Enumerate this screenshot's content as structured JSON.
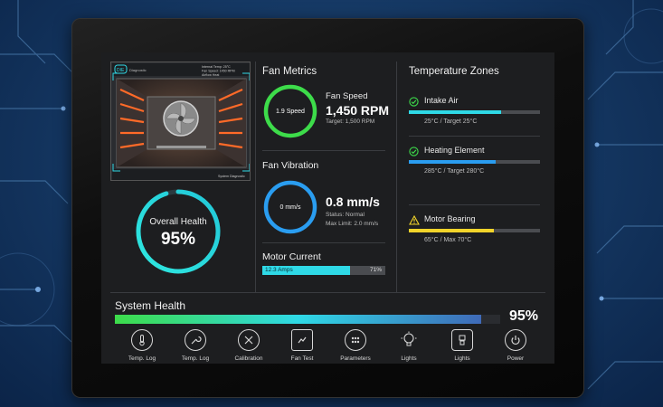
{
  "colors": {
    "accent_cyan": "#2fd9e6",
    "accent_green": "#3ddc4a",
    "accent_blue": "#2a9df0",
    "warning_yellow": "#f2d42a",
    "screen_bg": "#1d1e20"
  },
  "camera": {
    "logo": "DIE",
    "subtitle": "Diagnostic",
    "readout_line1": "Internal Temp: 25°C",
    "readout_line2": "Fan Speed: 1450 RPM",
    "readout_line3": "Airflow     Heat",
    "footer": "System Diagnostic"
  },
  "overall_health": {
    "label": "Overall Health",
    "value": "95%",
    "fraction": 0.95
  },
  "fan_metrics": {
    "title": "Fan Metrics",
    "ring_label": "1.9 Speed",
    "label": "Fan Speed",
    "value": "1,450 RPM",
    "target": "Target: 1,500 RPM"
  },
  "fan_vibration": {
    "title": "Fan Vibration",
    "ring_label": "0 mm/s",
    "value": "0.8 mm/s",
    "status": "Status: Normal",
    "max_limit": "Max Limit: 2.0 mm/s"
  },
  "motor_current": {
    "title": "Motor Current",
    "bar_label": "12.3 Amps",
    "percent_label": "71%",
    "fraction": 0.71
  },
  "temperature_zones": {
    "title": "Temperature Zones",
    "zones": [
      {
        "name": "Intake Air",
        "detail": "25°C / Target 25°C",
        "status_icon": "check-circle-icon",
        "color": "#2fd9e6",
        "fraction": 0.7
      },
      {
        "name": "Heating Element",
        "detail": "285°C / Target 280°C",
        "status_icon": "check-circle-icon",
        "color": "#2a9df0",
        "fraction": 0.66
      },
      {
        "name": "Motor Bearing",
        "detail": "65°C / Max 70°C",
        "status_icon": "warning-triangle-icon",
        "color": "#f2d42a",
        "fraction": 0.65
      }
    ]
  },
  "system_health": {
    "title": "System Health",
    "value": "95%",
    "fraction": 0.95
  },
  "nav": [
    {
      "label": "Temp. Log",
      "icon": "thermometer-icon"
    },
    {
      "label": "Temp. Log",
      "icon": "wrench-icon"
    },
    {
      "label": "Calibration",
      "icon": "tools-icon"
    },
    {
      "label": "Fan Test",
      "icon": "fan-test-icon"
    },
    {
      "label": "Parameters",
      "icon": "parameters-icon"
    },
    {
      "label": "Lights",
      "icon": "lightbulb-icon"
    },
    {
      "label": "Lights",
      "icon": "lamp-icon"
    },
    {
      "label": "Power",
      "icon": "power-icon"
    }
  ]
}
